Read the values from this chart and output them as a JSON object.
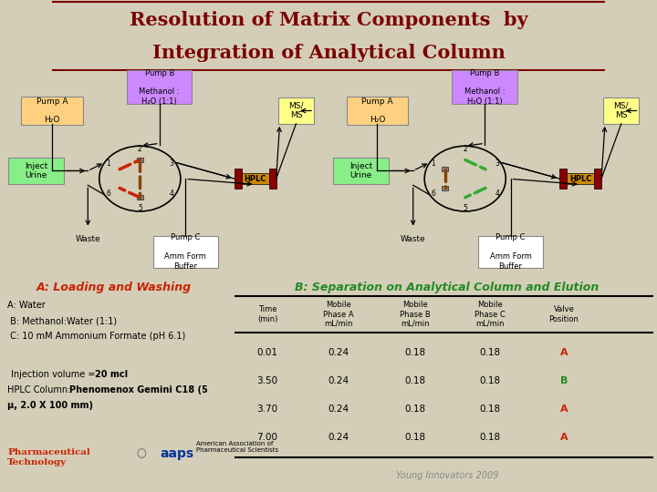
{
  "title_line1": "Resolution of Matrix Components  by",
  "title_line2": "Integration of Analytical Column",
  "title_color": "#7B0000",
  "bg_color": "#D4CEB8",
  "section_a_title": "A: Loading and Washing",
  "section_b_title": "B: Separation on Analytical Column and Elution",
  "section_a_color": "#CC2200",
  "section_b_color": "#228B22",
  "left_text_lines": [
    [
      "A: Water",
      false
    ],
    [
      " B: Methanol:Water (1:1)",
      false
    ],
    [
      " C: 10 mM Ammonium Formate (pH 6.1)",
      false
    ],
    [
      "",
      false
    ],
    [
      "  Injection volume = 20 mcl",
      true
    ],
    [
      "HPLC Column: Phenomenox Gemini C18 (5",
      true
    ],
    [
      "μ, 2.0 X 100 mm)",
      true
    ]
  ],
  "table_headers": [
    "Time\n(min)",
    "Mobile\nPhase A\nmL/min",
    "Mobile\nPhase B\nmL/min",
    "Mobile\nPhase C\nmL/min",
    "Valve\nPosition"
  ],
  "table_rows": [
    [
      "0.01",
      "0.24",
      "0.18",
      "0.18",
      "A"
    ],
    [
      "3.50",
      "0.24",
      "0.18",
      "0.18",
      "B"
    ],
    [
      "3.70",
      "0.24",
      "0.18",
      "0.18",
      "A"
    ],
    [
      "7.00",
      "0.24",
      "0.18",
      "0.18",
      "A"
    ]
  ],
  "valve_colors": [
    "#CC2200",
    "#228B22",
    "#CC2200",
    "#CC2200"
  ],
  "footer": "Young Innovators 2009",
  "pump_b_color": "#CC88FF",
  "pump_a_color": "#FFD080",
  "inject_color": "#88EE88",
  "ms_color": "#FFFF88",
  "pump_c_color": "#FFFFFF",
  "hplc_bar_color": "#8B0000",
  "hplc_fill_color": "#CC8800",
  "valve_line_left_color": "#CC2200",
  "valve_line_right_color": "#33AA33",
  "valve_col_color": "#884400"
}
